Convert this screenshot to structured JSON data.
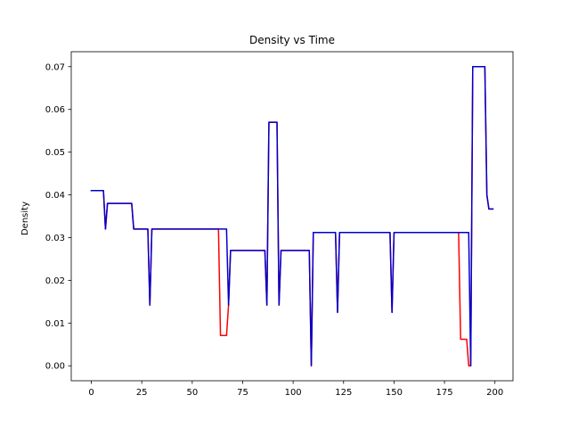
{
  "chart_data": {
    "type": "line",
    "title": "Density vs Time",
    "xlabel": "",
    "ylabel": "Density",
    "xlim": [
      -9.95,
      208.95
    ],
    "ylim": [
      -0.0035,
      0.0735
    ],
    "xticks": [
      0,
      25,
      50,
      75,
      100,
      125,
      150,
      175,
      200
    ],
    "xtick_labels": [
      "0",
      "25",
      "50",
      "75",
      "100",
      "125",
      "150",
      "175",
      "200"
    ],
    "yticks": [
      0.0,
      0.01,
      0.02,
      0.03,
      0.04,
      0.05,
      0.06,
      0.07
    ],
    "ytick_labels": [
      "0.00",
      "0.01",
      "0.02",
      "0.03",
      "0.04",
      "0.05",
      "0.06",
      "0.07"
    ],
    "grid": false,
    "series": [
      {
        "color": "#ff0000",
        "x": [
          0,
          6,
          7,
          8,
          20,
          21,
          28,
          29,
          30,
          63,
          64,
          67,
          68,
          69,
          86,
          87,
          88,
          92,
          93,
          94,
          108,
          109,
          110,
          121,
          122,
          123,
          148,
          149,
          150,
          182,
          183,
          186,
          187,
          188,
          189,
          195,
          196,
          197,
          199
        ],
        "y": [
          0.041,
          0.041,
          0.032,
          0.038,
          0.038,
          0.032,
          0.032,
          0.0142,
          0.032,
          0.032,
          0.0071,
          0.0071,
          0.0142,
          0.027,
          0.027,
          0.0142,
          0.057,
          0.057,
          0.0142,
          0.027,
          0.027,
          0.0,
          0.0312,
          0.0312,
          0.0125,
          0.0312,
          0.0312,
          0.0125,
          0.0312,
          0.0312,
          0.0062,
          0.0062,
          0.0,
          0.0,
          0.07,
          0.07,
          0.04,
          0.0367,
          0.0367
        ]
      },
      {
        "color": "#0000cc",
        "x": [
          0,
          6,
          7,
          8,
          20,
          21,
          28,
          29,
          30,
          67,
          68,
          69,
          86,
          87,
          88,
          92,
          93,
          94,
          108,
          109,
          110,
          121,
          122,
          123,
          148,
          149,
          150,
          187,
          188,
          189,
          195,
          196,
          197,
          199
        ],
        "y": [
          0.041,
          0.041,
          0.032,
          0.038,
          0.038,
          0.032,
          0.032,
          0.0142,
          0.032,
          0.032,
          0.0142,
          0.027,
          0.027,
          0.0142,
          0.057,
          0.057,
          0.0142,
          0.027,
          0.027,
          0.0,
          0.0312,
          0.0312,
          0.0125,
          0.0312,
          0.0312,
          0.0125,
          0.0312,
          0.0312,
          0.0,
          0.07,
          0.07,
          0.04,
          0.0367,
          0.0367
        ]
      }
    ]
  }
}
